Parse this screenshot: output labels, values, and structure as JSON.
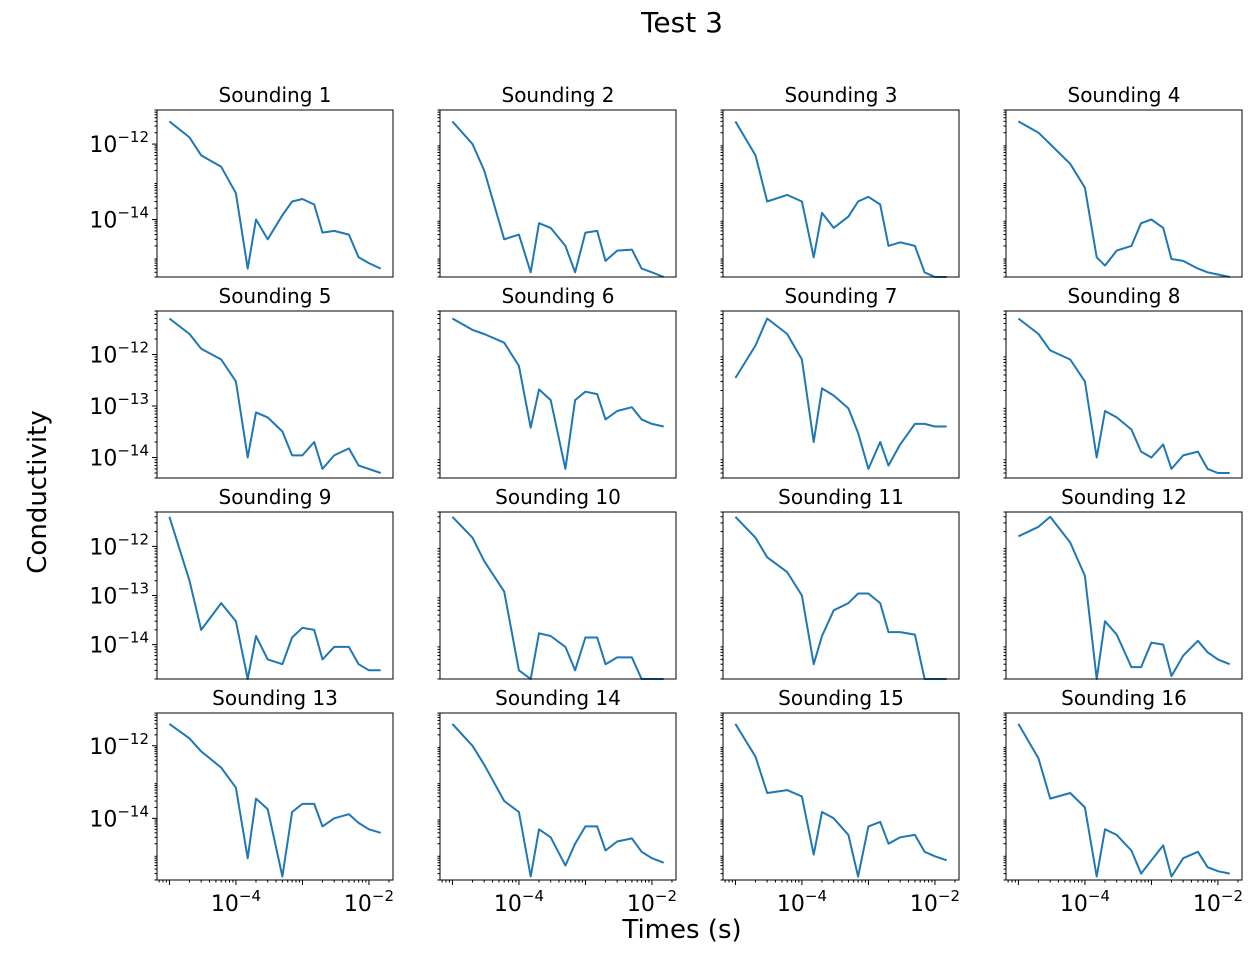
{
  "figure": {
    "title": "Test 3",
    "xlabel": "Times (s)",
    "ylabel": "Conductivity",
    "line_color": "#1f77b4"
  },
  "chart_data": {
    "type": "line",
    "xscale": "log",
    "yscale": "log",
    "grid": false,
    "x": [
      1e-05,
      2e-05,
      3e-05,
      6e-05,
      0.0001,
      0.00015,
      0.0002,
      0.0003,
      0.0005,
      0.0007,
      0.001,
      0.0015,
      0.002,
      0.003,
      0.005,
      0.007,
      0.01,
      0.015
    ],
    "xticks": [
      {
        "base": "10",
        "exp": "−4",
        "value": 0.0001
      },
      {
        "base": "10",
        "exp": "−2",
        "value": 0.01
      }
    ],
    "panels": [
      {
        "title": "Sounding 1",
        "ylim": [
          3e-16,
          8e-12
        ],
        "yticks": [
          {
            "base": "10",
            "exp": "−12",
            "value": 1e-12
          },
          {
            "base": "10",
            "exp": "−14",
            "value": 1e-14
          }
        ],
        "values": [
          4e-12,
          1.5e-12,
          5e-13,
          2.5e-13,
          5e-14,
          5e-16,
          1e-14,
          3e-15,
          1.3e-14,
          3e-14,
          3.5e-14,
          2.5e-14,
          4.5e-15,
          5e-15,
          4e-15,
          1e-15,
          7e-16,
          5e-16
        ]
      },
      {
        "title": "Sounding 2",
        "ylim": [
          3e-16,
          8e-12
        ],
        "yticks": [],
        "values": [
          4e-12,
          1e-12,
          2e-13,
          3e-15,
          4e-15,
          4e-16,
          8e-15,
          6e-15,
          2e-15,
          4e-16,
          4.5e-15,
          5e-15,
          8e-16,
          1.5e-15,
          1.6e-15,
          5e-16,
          4e-16,
          3e-16
        ]
      },
      {
        "title": "Sounding 3",
        "ylim": [
          3e-16,
          8e-12
        ],
        "yticks": [],
        "values": [
          4e-12,
          5e-13,
          3e-14,
          4.5e-14,
          3e-14,
          1e-15,
          1.5e-14,
          6e-15,
          1.2e-14,
          3e-14,
          4e-14,
          2.5e-14,
          2e-15,
          2.5e-15,
          2e-15,
          4e-16,
          3e-16,
          3e-16
        ]
      },
      {
        "title": "Sounding 4",
        "ylim": [
          3e-16,
          8e-12
        ],
        "yticks": [],
        "values": [
          4e-12,
          2e-12,
          1e-12,
          3e-13,
          7e-14,
          1e-15,
          6e-16,
          1.5e-15,
          2e-15,
          8e-15,
          1e-14,
          6e-15,
          9e-16,
          8e-16,
          5e-16,
          4e-16,
          3.5e-16,
          3e-16
        ]
      },
      {
        "title": "Sounding 5",
        "ylim": [
          4e-15,
          7e-12
        ],
        "yticks": [
          {
            "base": "10",
            "exp": "−12",
            "value": 1e-12
          },
          {
            "base": "10",
            "exp": "−13",
            "value": 1e-13
          },
          {
            "base": "10",
            "exp": "−14",
            "value": 1e-14
          }
        ],
        "values": [
          5e-12,
          2.5e-12,
          1.3e-12,
          8e-13,
          3e-13,
          1e-14,
          7.5e-14,
          6e-14,
          3.2e-14,
          1.1e-14,
          1.1e-14,
          2e-14,
          6e-15,
          1.1e-14,
          1.5e-14,
          7e-15,
          6e-15,
          5e-15
        ]
      },
      {
        "title": "Sounding 6",
        "ylim": [
          4e-15,
          7e-12
        ],
        "yticks": [],
        "values": [
          5e-12,
          3e-12,
          2.5e-12,
          1.7e-12,
          6e-13,
          3.8e-14,
          2.1e-13,
          1.3e-13,
          6e-15,
          1.3e-13,
          1.9e-13,
          1.7e-13,
          5.5e-14,
          8e-14,
          9.5e-14,
          5.5e-14,
          4.5e-14,
          4e-14
        ]
      },
      {
        "title": "Sounding 7",
        "ylim": [
          4e-15,
          7e-12
        ],
        "yticks": [],
        "values": [
          3.5e-13,
          1.5e-12,
          5e-12,
          2.5e-12,
          8e-13,
          2e-14,
          2.2e-13,
          1.6e-13,
          9e-14,
          3e-14,
          6e-15,
          2e-14,
          7e-15,
          1.8e-14,
          4.5e-14,
          4.5e-14,
          4e-14,
          4e-14
        ]
      },
      {
        "title": "Sounding 8",
        "ylim": [
          4e-15,
          7e-12
        ],
        "yticks": [],
        "values": [
          5e-12,
          2.5e-12,
          1.2e-12,
          8e-13,
          3e-13,
          1e-14,
          8e-14,
          6e-14,
          3.5e-14,
          1.3e-14,
          1e-14,
          1.8e-14,
          6e-15,
          1.1e-14,
          1.3e-14,
          6e-15,
          5e-15,
          5e-15
        ]
      },
      {
        "title": "Sounding 9",
        "ylim": [
          2e-15,
          5e-12
        ],
        "yticks": [
          {
            "base": "10",
            "exp": "−12",
            "value": 1e-12
          },
          {
            "base": "10",
            "exp": "−13",
            "value": 1e-13
          },
          {
            "base": "10",
            "exp": "−14",
            "value": 1e-14
          }
        ],
        "values": [
          4e-12,
          2e-13,
          2e-14,
          7e-14,
          3e-14,
          2e-15,
          1.5e-14,
          5e-15,
          4e-15,
          1.4e-14,
          2.2e-14,
          2e-14,
          5e-15,
          9e-15,
          9e-15,
          4e-15,
          3e-15,
          3e-15
        ]
      },
      {
        "title": "Sounding 10",
        "ylim": [
          2e-15,
          5e-12
        ],
        "yticks": [],
        "values": [
          4e-12,
          1.5e-12,
          5e-13,
          1.2e-13,
          3e-15,
          2e-15,
          1.7e-14,
          1.5e-14,
          9e-15,
          3e-15,
          1.4e-14,
          1.4e-14,
          4e-15,
          5.5e-15,
          5.5e-15,
          2e-15,
          2e-15,
          2e-15
        ]
      },
      {
        "title": "Sounding 11",
        "ylim": [
          2e-15,
          5e-12
        ],
        "yticks": [],
        "values": [
          4e-12,
          1.5e-12,
          6e-13,
          3e-13,
          1e-13,
          4e-15,
          1.5e-14,
          5e-14,
          7e-14,
          1.1e-13,
          1.1e-13,
          7e-14,
          1.8e-14,
          1.8e-14,
          1.6e-14,
          2e-15,
          2e-15,
          2e-15
        ]
      },
      {
        "title": "Sounding 12",
        "ylim": [
          2e-15,
          5e-12
        ],
        "yticks": [],
        "values": [
          1.6e-12,
          2.5e-12,
          4e-12,
          1.2e-12,
          2.5e-13,
          2e-15,
          3e-14,
          1.6e-14,
          3.5e-15,
          3.5e-15,
          1.1e-14,
          1e-14,
          2.3e-15,
          6e-15,
          1.2e-14,
          7e-15,
          5e-15,
          4e-15
        ]
      },
      {
        "title": "Sounding 13",
        "ylim": [
          2e-16,
          8e-12
        ],
        "yticks": [
          {
            "base": "10",
            "exp": "−12",
            "value": 1e-12
          },
          {
            "base": "10",
            "exp": "−14",
            "value": 1e-14
          }
        ],
        "values": [
          4e-12,
          1.6e-12,
          7e-13,
          2.5e-13,
          7e-14,
          8e-16,
          3.5e-14,
          1.8e-14,
          2.5e-16,
          1.5e-14,
          2.5e-14,
          2.5e-14,
          6e-15,
          1e-14,
          1.3e-14,
          7.5e-15,
          5e-15,
          4e-15
        ]
      },
      {
        "title": "Sounding 14",
        "ylim": [
          2e-16,
          8e-12
        ],
        "yticks": [],
        "values": [
          4e-12,
          1e-12,
          3e-13,
          3e-14,
          1.5e-14,
          2.5e-16,
          5e-15,
          3e-15,
          5e-16,
          2e-15,
          6e-15,
          6e-15,
          1.3e-15,
          2.3e-15,
          2.8e-15,
          1.2e-15,
          8e-16,
          6e-16
        ]
      },
      {
        "title": "Sounding 15",
        "ylim": [
          2e-16,
          8e-12
        ],
        "yticks": [],
        "values": [
          4e-12,
          5e-13,
          5e-14,
          6e-14,
          4e-14,
          1e-15,
          1.5e-14,
          1e-14,
          3.5e-15,
          2.5e-16,
          6e-15,
          8e-15,
          2e-15,
          3e-15,
          3.5e-15,
          1.2e-15,
          9e-16,
          7e-16
        ]
      },
      {
        "title": "Sounding 16",
        "ylim": [
          2e-16,
          8e-12
        ],
        "yticks": [],
        "values": [
          4e-12,
          4.5e-13,
          3.5e-14,
          5e-14,
          2e-14,
          2.5e-16,
          5e-15,
          3.5e-15,
          1.3e-15,
          3e-16,
          7e-16,
          1.8e-15,
          2.5e-16,
          8e-16,
          1.2e-15,
          4.5e-16,
          3.5e-16,
          3e-16
        ]
      }
    ]
  }
}
